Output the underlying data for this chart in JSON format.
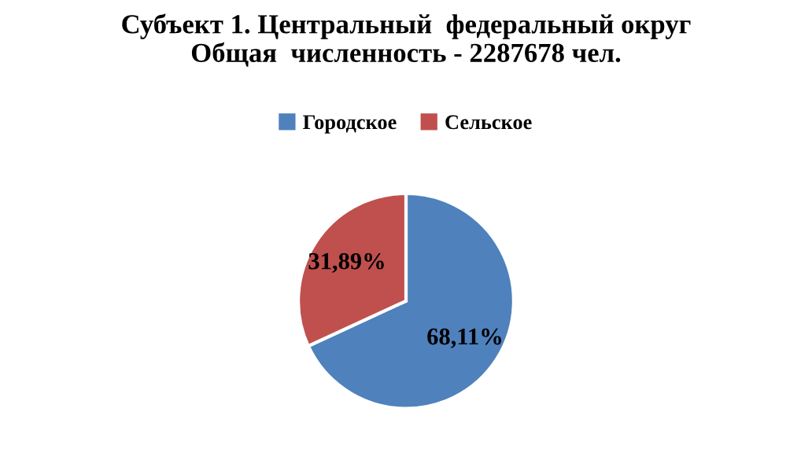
{
  "chart_data": {
    "type": "pie",
    "title": "Субъект 1. Центральный  федеральный округ\nОбщая  численность - 2287678 чел.",
    "categories": [
      "Городское",
      "Сельское"
    ],
    "values": [
      68.11,
      31.89
    ],
    "colors": [
      "#4f81bd",
      "#c0504d"
    ],
    "value_labels": [
      "68,11%",
      "31,89%"
    ],
    "legend": "top"
  }
}
